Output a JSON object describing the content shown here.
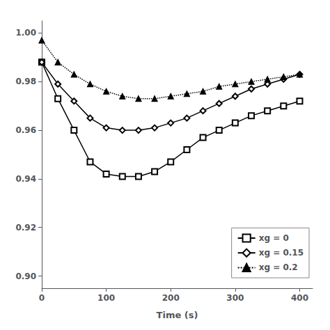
{
  "chart_data": {
    "type": "line",
    "xlabel": "Time (s)",
    "x": [
      0,
      25,
      50,
      75,
      100,
      125,
      150,
      175,
      200,
      225,
      250,
      275,
      300,
      325,
      350,
      375,
      400
    ],
    "series": [
      {
        "name": "xg = 0",
        "color": "#000000",
        "marker": "square_open",
        "line_style": "solid",
        "values": [
          0.988,
          0.973,
          0.96,
          0.947,
          0.942,
          0.941,
          0.941,
          0.943,
          0.947,
          0.952,
          0.957,
          0.96,
          0.963,
          0.966,
          0.968,
          0.97,
          0.972
        ]
      },
      {
        "name": "xg = 0.15",
        "color": "#000000",
        "marker": "diamond_open",
        "line_style": "solid",
        "values": [
          0.988,
          0.979,
          0.972,
          0.965,
          0.961,
          0.96,
          0.96,
          0.961,
          0.963,
          0.965,
          0.968,
          0.971,
          0.974,
          0.977,
          0.979,
          0.981,
          0.983
        ]
      },
      {
        "name": "xg = 0.2",
        "color": "#000000",
        "marker": "triangle",
        "line_style": "dotted",
        "values": [
          0.997,
          0.988,
          0.983,
          0.979,
          0.976,
          0.974,
          0.973,
          0.973,
          0.974,
          0.975,
          0.976,
          0.978,
          0.979,
          0.98,
          0.981,
          0.982,
          0.983
        ]
      }
    ],
    "xlim": [
      0,
      420
    ],
    "xticks": [
      0,
      100,
      200,
      300,
      400
    ],
    "ylim": [
      0.895,
      1.005
    ],
    "yticks": [
      {
        "value": 0.9,
        "label": "0.90"
      },
      {
        "value": 0.92,
        "label": "0.92"
      },
      {
        "value": 0.94,
        "label": "0.94"
      },
      {
        "value": 0.96,
        "label": "0.96"
      },
      {
        "value": 0.98,
        "label": "0.98"
      },
      {
        "value": 1.0,
        "label": "1.00"
      }
    ],
    "grid": false,
    "legend": "lower right"
  }
}
